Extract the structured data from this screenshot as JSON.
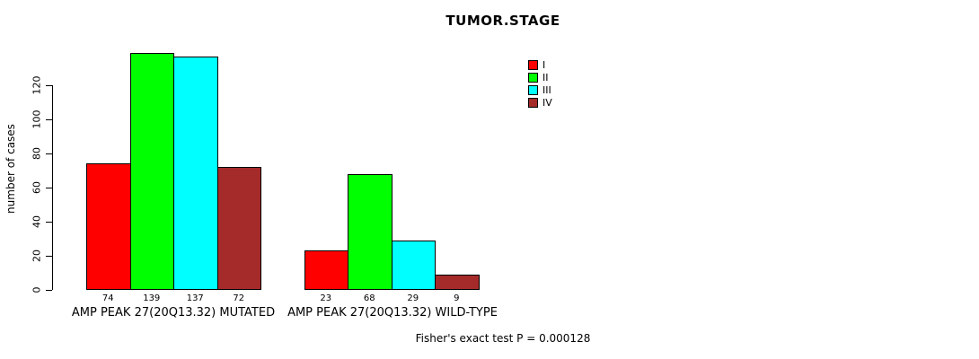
{
  "title": "TUMOR.STAGE",
  "footer": "Fisher's exact test P = 0.000128",
  "colors": {
    "background": "#FFFFFF",
    "axis": "#000000",
    "bar_border": "#000000",
    "stage_I": "#FF0000",
    "stage_II": "#00FF00",
    "stage_III": "#00FFFF",
    "stage_IV": "#A52A2A"
  },
  "chart_data": {
    "type": "bar",
    "title": "TUMOR.STAGE",
    "xlabel": "",
    "ylabel": "number of cases",
    "ylim": [
      0,
      145
    ],
    "yticks": [
      0,
      20,
      40,
      60,
      80,
      100,
      120
    ],
    "grid": false,
    "legend_position": "top-right-inside",
    "legend_entries": [
      "I",
      "II",
      "III",
      "IV"
    ],
    "categories": [
      "AMP PEAK 27(20Q13.32) MUTATED",
      "AMP PEAK 27(20Q13.32) WILD-TYPE"
    ],
    "series": [
      {
        "name": "I",
        "color": "#FF0000",
        "values": [
          74,
          23
        ]
      },
      {
        "name": "II",
        "color": "#00FF00",
        "values": [
          139,
          68
        ]
      },
      {
        "name": "III",
        "color": "#00FFFF",
        "values": [
          137,
          29
        ]
      },
      {
        "name": "IV",
        "color": "#A52A2A",
        "values": [
          72,
          9
        ]
      }
    ],
    "bar_value_labels": [
      [
        74,
        139,
        137,
        72
      ],
      [
        23,
        68,
        29,
        9
      ]
    ],
    "annotation": "Fisher's exact test P = 0.000128"
  }
}
